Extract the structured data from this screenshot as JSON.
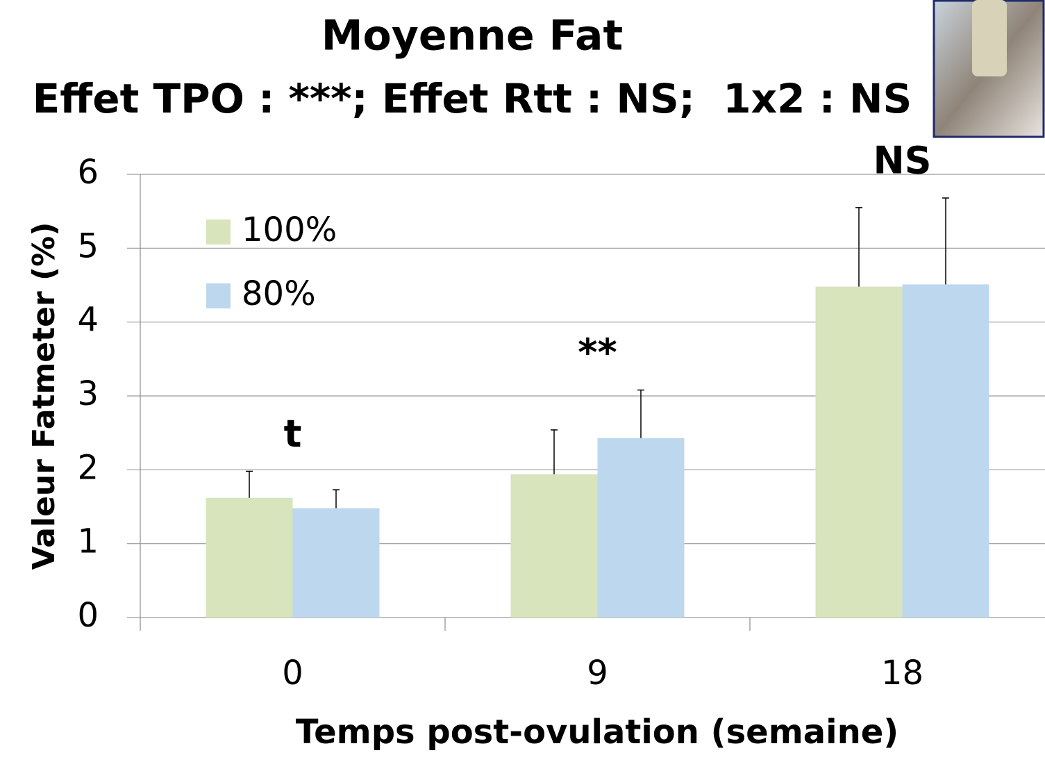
{
  "chart_data": {
    "type": "bar",
    "title": "Moyenne Fat",
    "subtitle": "Effet TPO : ***; Effet Rtt : NS;  1x2 : NS",
    "x_label": "Temps post-ovulation (semaine)",
    "y_label": "Valeur Fatmeter (%)",
    "categories": [
      "0",
      "9",
      "18"
    ],
    "annotations": [
      "t",
      "**",
      "NS"
    ],
    "series": [
      {
        "name": "100%",
        "color": "#d7e4bc",
        "values": [
          1.62,
          1.94,
          4.48
        ],
        "errors": [
          0.36,
          0.6,
          1.07
        ]
      },
      {
        "name": "80%",
        "color": "#bdd7ee",
        "values": [
          1.48,
          2.43,
          4.51
        ],
        "errors": [
          0.25,
          0.65,
          1.17
        ]
      }
    ],
    "ylim": [
      0,
      6
    ],
    "yticks": [
      0,
      1,
      2,
      3,
      4,
      5,
      6
    ],
    "grid": true,
    "legend": "upper-left"
  }
}
